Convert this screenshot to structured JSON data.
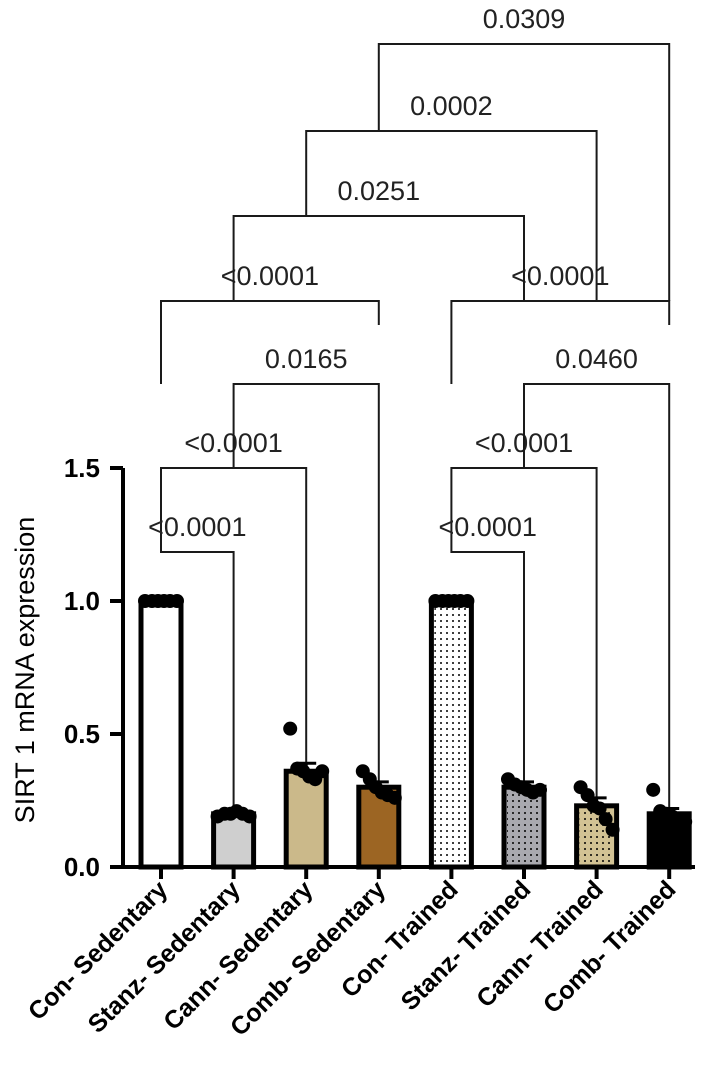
{
  "chart_data": {
    "type": "bar",
    "title": "",
    "xlabel": "",
    "ylabel": "SIRT 1 mRNA expression",
    "ylim": [
      0,
      1.5
    ],
    "yticks": [
      "0.0",
      "0.5",
      "1.0",
      "1.5"
    ],
    "categories": [
      "Con- Sedentary",
      "Stanz- Sedentary",
      "Cann- Sedentary",
      "Comb- Sedentary",
      "Con- Trained",
      "Stanz- Trained",
      "Cann- Trained",
      "Comb- Trained"
    ],
    "values": [
      1.0,
      0.2,
      0.36,
      0.3,
      1.0,
      0.3,
      0.23,
      0.2
    ],
    "errors": [
      0.0,
      0.01,
      0.03,
      0.02,
      0.0,
      0.02,
      0.03,
      0.02
    ],
    "bar_fills": [
      "#ffffff",
      "#cfcfcf",
      "#cbb98a",
      "#9c6523",
      "#ffffff",
      "#a9a9af",
      "#d2c294",
      "#000000"
    ],
    "bar_patterns": [
      "none",
      "none",
      "none",
      "none",
      "dots",
      "dots",
      "dots",
      "none"
    ],
    "points": [
      [
        1.0,
        1.0,
        1.0,
        1.0,
        1.0,
        1.0
      ],
      [
        0.19,
        0.2,
        0.2,
        0.21,
        0.2,
        0.19
      ],
      [
        0.52,
        0.37,
        0.36,
        0.34,
        0.33,
        0.36
      ],
      [
        0.36,
        0.33,
        0.3,
        0.28,
        0.27,
        0.26
      ],
      [
        1.0,
        1.0,
        1.0,
        1.0,
        1.0,
        1.0
      ],
      [
        0.33,
        0.31,
        0.3,
        0.29,
        0.28,
        0.29
      ],
      [
        0.3,
        0.27,
        0.23,
        0.22,
        0.18,
        0.14
      ],
      [
        0.29,
        0.21,
        0.2,
        0.19,
        0.18,
        0.17
      ]
    ],
    "comparisons": [
      {
        "from": 0,
        "to": 1,
        "label": "<0.0001"
      },
      {
        "from": 0,
        "to": 2,
        "label": "<0.0001"
      },
      {
        "from": 1,
        "to": 3,
        "label": "0.0165"
      },
      {
        "from": 0,
        "to": 3,
        "label": "<0.0001"
      },
      {
        "from": 4,
        "to": 5,
        "label": "<0.0001"
      },
      {
        "from": 4,
        "to": 6,
        "label": "<0.0001"
      },
      {
        "from": 5,
        "to": 7,
        "label": "0.0460"
      },
      {
        "from": 4,
        "to": 7,
        "label": "<0.0001"
      },
      {
        "from": 1,
        "to": 5,
        "label": "0.0251"
      },
      {
        "from": 2,
        "to": 6,
        "label": "0.0002"
      },
      {
        "from": 3,
        "to": 7,
        "label": "0.0309"
      }
    ],
    "grid": false,
    "legend": "none"
  }
}
